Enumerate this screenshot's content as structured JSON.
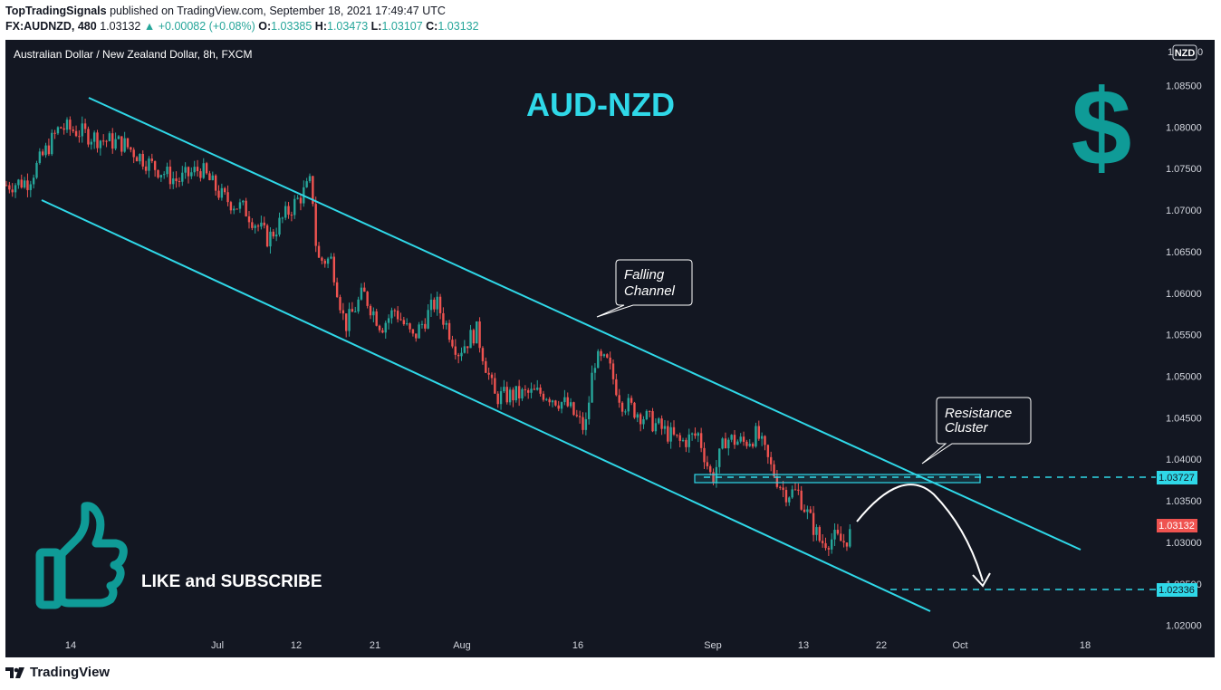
{
  "header": {
    "author": "TopTradingSignals",
    "published": "published on TradingView.com, September 18, 2021 17:49:47 UTC",
    "symbol": "FX:AUDNZD, 480",
    "last": "1.03132",
    "change": "▲ +0.00082 (+0.08%)",
    "o_label": "O:",
    "o_value": "1.03385",
    "h_label": "H:",
    "h_value": "1.03473",
    "l_label": "L:",
    "l_value": "1.03107",
    "c_label": "C:",
    "c_value": "1.03132"
  },
  "chart": {
    "instrument": "Australian Dollar / New Zealand Dollar, 8h, FXCM",
    "headline": "AUD-NZD",
    "currency_badge": "NZD",
    "axis_top_fragment": "1",
    "axis_top_fragment_right": "0",
    "dollar_icon": "dollar-sign-icon",
    "thumbs_icon": "thumbs-up-icon",
    "cta": "LIKE and SUBSCRIBE",
    "callouts": {
      "channel": [
        "Falling",
        "Channel"
      ],
      "resistance": [
        "Resistance",
        "Cluster"
      ]
    },
    "price_tags": {
      "resistance": "1.03727",
      "current": "1.03132",
      "target": "1.02336"
    },
    "colors": {
      "background": "#131722",
      "up": "#26a69a",
      "down": "#ef5350",
      "channel": "#2fd8e8",
      "headline": "#2fd8e8",
      "icon": "#0f9b97"
    }
  },
  "chart_data": {
    "type": "candlestick",
    "title": "Australian Dollar / New Zealand Dollar, 8h, FXCM",
    "y_ticks": [
      "1.08500",
      "1.08000",
      "1.07500",
      "1.07000",
      "1.06500",
      "1.06000",
      "1.05500",
      "1.05000",
      "1.04500",
      "1.04000",
      "1.03500",
      "1.03000",
      "1.02500",
      "1.02000"
    ],
    "x_ticks": [
      "14",
      "Jul",
      "12",
      "21",
      "Aug",
      "16",
      "Sep",
      "13",
      "22",
      "Oct",
      "18"
    ],
    "close_path": [
      {
        "x": 0,
        "y": 1.073
      },
      {
        "x": 25,
        "y": 1.0735
      },
      {
        "x": 60,
        "y": 1.08
      },
      {
        "x": 80,
        "y": 1.0795
      },
      {
        "x": 105,
        "y": 1.0785
      },
      {
        "x": 130,
        "y": 1.078
      },
      {
        "x": 160,
        "y": 1.0755
      },
      {
        "x": 190,
        "y": 1.0735
      },
      {
        "x": 215,
        "y": 1.075
      },
      {
        "x": 240,
        "y": 1.0715
      },
      {
        "x": 265,
        "y": 1.07
      },
      {
        "x": 290,
        "y": 1.0665
      },
      {
        "x": 310,
        "y": 1.0695
      },
      {
        "x": 332,
        "y": 1.0725
      },
      {
        "x": 338,
        "y": 1.0735
      },
      {
        "x": 344,
        "y": 1.064
      },
      {
        "x": 360,
        "y": 1.064
      },
      {
        "x": 375,
        "y": 1.056
      },
      {
        "x": 395,
        "y": 1.06
      },
      {
        "x": 415,
        "y": 1.056
      },
      {
        "x": 430,
        "y": 1.058
      },
      {
        "x": 450,
        "y": 1.0545
      },
      {
        "x": 475,
        "y": 1.059
      },
      {
        "x": 500,
        "y": 1.053
      },
      {
        "x": 520,
        "y": 1.0555
      },
      {
        "x": 540,
        "y": 1.0475
      },
      {
        "x": 570,
        "y": 1.0478
      },
      {
        "x": 595,
        "y": 1.048
      },
      {
        "x": 620,
        "y": 1.0465
      },
      {
        "x": 640,
        "y": 1.0435
      },
      {
        "x": 650,
        "y": 1.052
      },
      {
        "x": 665,
        "y": 1.0515
      },
      {
        "x": 680,
        "y": 1.047
      },
      {
        "x": 700,
        "y": 1.0455
      },
      {
        "x": 720,
        "y": 1.044
      },
      {
        "x": 745,
        "y": 1.042
      },
      {
        "x": 765,
        "y": 1.043
      },
      {
        "x": 780,
        "y": 1.0375
      },
      {
        "x": 795,
        "y": 1.0425
      },
      {
        "x": 815,
        "y": 1.042
      },
      {
        "x": 830,
        "y": 1.043
      },
      {
        "x": 845,
        "y": 1.039
      },
      {
        "x": 860,
        "y": 1.036
      },
      {
        "x": 875,
        "y": 1.036
      },
      {
        "x": 885,
        "y": 1.0335
      },
      {
        "x": 900,
        "y": 1.03
      },
      {
        "x": 915,
        "y": 1.0305
      },
      {
        "x": 925,
        "y": 1.03
      },
      {
        "x": 935,
        "y": 1.0313
      }
    ],
    "levels": {
      "resistance": 1.03727,
      "current": 1.03132,
      "target": 1.02336
    },
    "ylim": [
      1.018,
      1.0905
    ],
    "grid": false
  }
}
